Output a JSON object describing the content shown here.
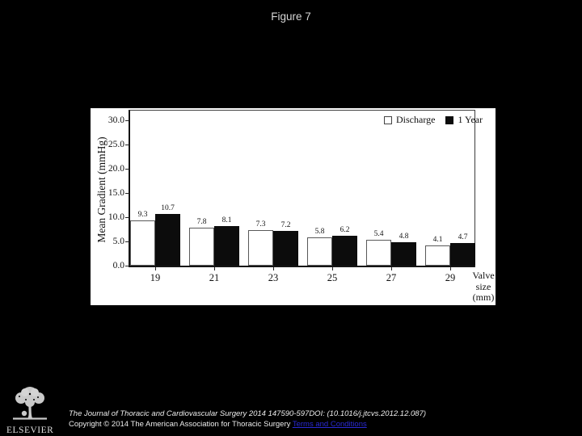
{
  "title": "Figure 7",
  "chart_data": {
    "type": "bar",
    "title": "Figure 7",
    "categories": [
      "19",
      "21",
      "23",
      "25",
      "27",
      "29"
    ],
    "series": [
      {
        "name": "Discharge",
        "style": "open",
        "values": [
          9.3,
          7.8,
          7.3,
          5.8,
          5.4,
          4.1
        ]
      },
      {
        "name": "1 Year",
        "style": "filled",
        "values": [
          10.7,
          8.1,
          7.2,
          6.2,
          4.8,
          4.7
        ]
      }
    ],
    "ylabel": "Mean Gradient (mmHg)",
    "xlabel_lines": [
      "Valve",
      "size",
      "(mm)"
    ],
    "ytick_labels": [
      "30.0",
      "25.0",
      "20.0",
      "15.0",
      "10.0",
      "5.0",
      "0.0"
    ],
    "ytick_values": [
      30,
      25,
      20,
      15,
      10,
      5,
      0
    ],
    "ylim": [
      0,
      32
    ],
    "grid": false,
    "legend_position": "top-right",
    "bar_colors": {
      "open": "#ffffff",
      "filled": "#0c0c0c"
    }
  },
  "footer": {
    "logo_text": "ELSEVIER",
    "citation": "The Journal of Thoracic and Cardiovascular Surgery 2014 147590-597DOI: (10.1016/j.jtcvs.2012.12.087)",
    "copyright_prefix": "Copyright © 2014 The American Association for Thoracic Surgery ",
    "terms_link": "Terms and Conditions"
  },
  "colors": {
    "background": "#000000",
    "panel": "#ffffff",
    "bar_filled": "#0c0c0c",
    "bar_open_border": "#595959",
    "link_blue": "#2a2ad6",
    "light_text": "#ececec"
  }
}
